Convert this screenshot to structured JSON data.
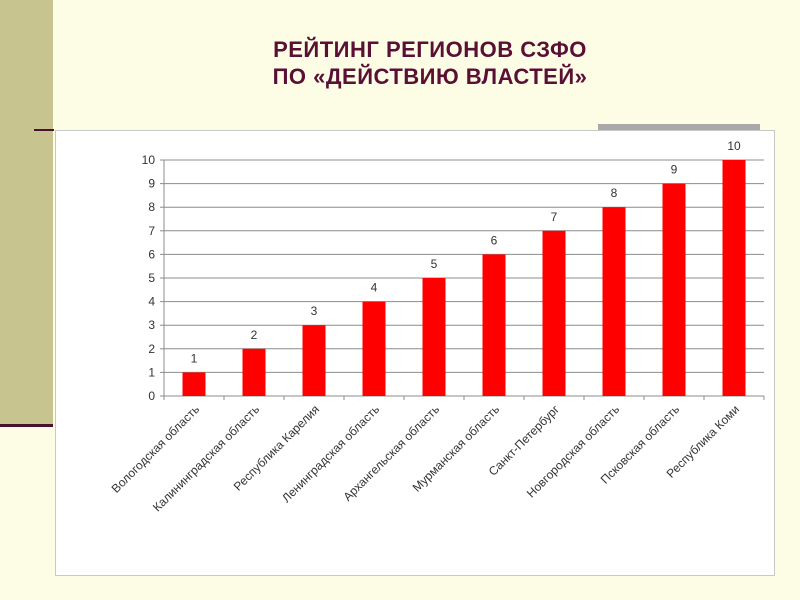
{
  "slide": {
    "title_line1": "РЕЙТИНГ РЕГИОНОВ СЗФО",
    "title_line2": "ПО «ДЕЙСТВИЮ ВЛАСТЕЙ»",
    "accent_color": "#5a0f34",
    "sidebar_color": "#c7c48f",
    "background_color": "#fdfde6"
  },
  "chart_data": {
    "type": "bar",
    "categories": [
      "Вологодская область",
      "Калининградская область",
      "Республика Карелия",
      "Ленинградская область",
      "Архангельская область",
      "Мурманская область",
      "Санкт-Петербург",
      "Новгородская область",
      "Псковская область",
      "Республика Коми"
    ],
    "values": [
      1,
      2,
      3,
      4,
      5,
      6,
      7,
      8,
      9,
      10
    ],
    "data_labels": [
      "1",
      "2",
      "3",
      "4",
      "5",
      "6",
      "7",
      "8",
      "9",
      "10"
    ],
    "yticks": [
      "0",
      "1",
      "2",
      "3",
      "4",
      "5",
      "6",
      "7",
      "8",
      "9",
      "10"
    ],
    "ylim": [
      0,
      10
    ],
    "grid": true,
    "legend": "none",
    "bar_color": "#ff0000"
  }
}
